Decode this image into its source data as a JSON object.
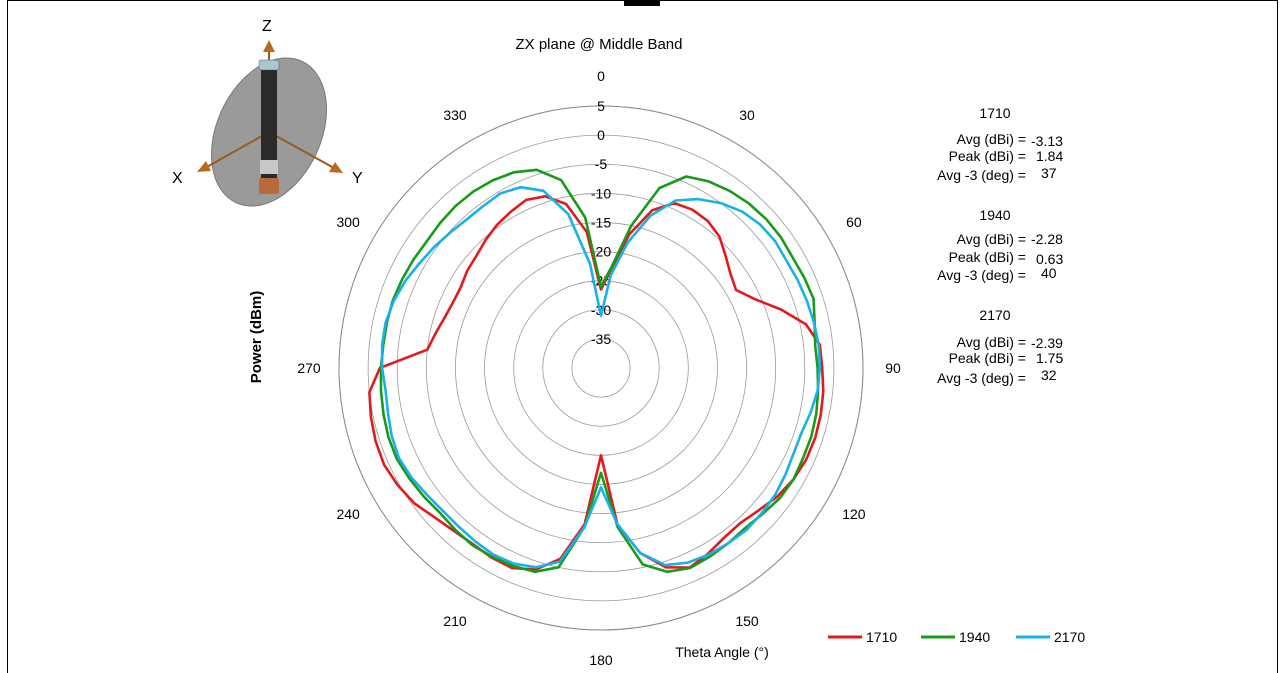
{
  "chart_data": {
    "type": "polar-line",
    "title": "ZX plane @ Middle Band",
    "ylabel": "Power (dBm)",
    "xlabel": "Theta  Angle (°)",
    "radial_ticks": [
      "5",
      "0",
      "-5",
      "-10",
      "-15",
      "-20",
      "-25",
      "-30",
      "-35"
    ],
    "radial_range": [
      -40,
      5
    ],
    "angle_ticks": [
      "0",
      "30",
      "60",
      "90",
      "120",
      "150",
      "180",
      "210",
      "240",
      "270",
      "300",
      "330"
    ],
    "angle_step_deg": 6,
    "series": [
      {
        "name": "1710",
        "color": "#e31a1c",
        "values": [
          -26.5,
          -22.8,
          -16.5,
          -11.5,
          -9.0,
          -8.6,
          -8.8,
          -9.6,
          -11.2,
          -12.5,
          -13.2,
          -11.0,
          -7.5,
          -4.0,
          -2.2,
          -2.0,
          -1.6,
          -1.4,
          -1.3,
          -1.4,
          -1.8,
          -2.5,
          -3.5,
          -4.2,
          -4.0,
          -3.2,
          -2.5,
          -4.0,
          -7.5,
          -13.0,
          -25.0,
          -13.0,
          -6.5,
          -3.6,
          -2.4,
          -2.4,
          -2.6,
          -2.3,
          -1.6,
          -0.4,
          0.3,
          0.8,
          0.7,
          0.4,
          0.0,
          -2.0,
          -10.0,
          -11.0,
          -11.8,
          -12.2,
          -12.2,
          -11.6,
          -11.2,
          -10.4,
          -9.6,
          -9.0,
          -8.4,
          -9.0,
          -11.2,
          -16.5
        ]
      },
      {
        "name": "1940",
        "color": "#1a9a1a",
        "values": [
          -26.0,
          -22.5,
          -15.0,
          -7.5,
          -4.0,
          -3.0,
          -2.4,
          -2.0,
          -1.8,
          -1.8,
          -2.0,
          -1.8,
          -1.6,
          -2.5,
          -3.0,
          -2.8,
          -2.5,
          -2.2,
          -2.0,
          -2.0,
          -1.8,
          -2.0,
          -2.6,
          -3.0,
          -2.8,
          -2.6,
          -2.4,
          -3.2,
          -5.5,
          -12.5,
          -22.0,
          -12.5,
          -5.0,
          -3.2,
          -2.8,
          -2.6,
          -2.4,
          -2.6,
          -2.8,
          -2.4,
          -2.0,
          -1.6,
          -1.6,
          -1.8,
          -2.0,
          -2.2,
          -2.4,
          -2.4,
          -2.4,
          -2.6,
          -2.8,
          -3.0,
          -2.8,
          -2.6,
          -2.6,
          -2.8,
          -3.2,
          -4.2,
          -7.0,
          -14.0
        ]
      },
      {
        "name": "2170",
        "color": "#1ab0e8",
        "values": [
          -31.0,
          -24.0,
          -18.0,
          -12.5,
          -8.5,
          -6.5,
          -5.0,
          -3.8,
          -3.2,
          -3.0,
          -3.2,
          -3.0,
          -2.8,
          -2.6,
          -2.4,
          -2.4,
          -2.6,
          -3.2,
          -3.8,
          -3.8,
          -3.4,
          -3.0,
          -2.8,
          -2.6,
          -2.8,
          -3.0,
          -3.4,
          -4.4,
          -7.5,
          -13.0,
          -19.5,
          -12.5,
          -6.0,
          -4.0,
          -3.2,
          -3.0,
          -3.2,
          -3.4,
          -3.4,
          -3.0,
          -2.4,
          -2.0,
          -2.2,
          -2.6,
          -2.8,
          -2.4,
          -2.2,
          -2.2,
          -2.6,
          -3.2,
          -4.0,
          -4.6,
          -5.2,
          -5.6,
          -5.6,
          -5.4,
          -6.0,
          -8.0,
          -13.0,
          -22.0
        ]
      }
    ]
  },
  "stats": [
    {
      "name": "1710",
      "avg_label": "Avg (dBi) =",
      "avg": "-3.13",
      "peak_label": "Peak (dBi) =",
      "peak": "1.84",
      "deg_label": "Avg -3 (deg) =",
      "deg": "37"
    },
    {
      "name": "1940",
      "avg_label": "Avg (dBi) =",
      "avg": "-2.28",
      "peak_label": "Peak (dBi) =",
      "peak": "0.63",
      "deg_label": "Avg -3 (deg) =",
      "deg": "40"
    },
    {
      "name": "2170",
      "avg_label": "Avg (dBi) =",
      "avg": "-2.39",
      "peak_label": "Peak (dBi) =",
      "peak": "1.75",
      "deg_label": "Avg -3 (deg) =",
      "deg": "32"
    }
  ],
  "axes_icon": {
    "z": "Z",
    "x": "X",
    "y": "Y",
    "icon": "antenna-orientation-icon"
  }
}
